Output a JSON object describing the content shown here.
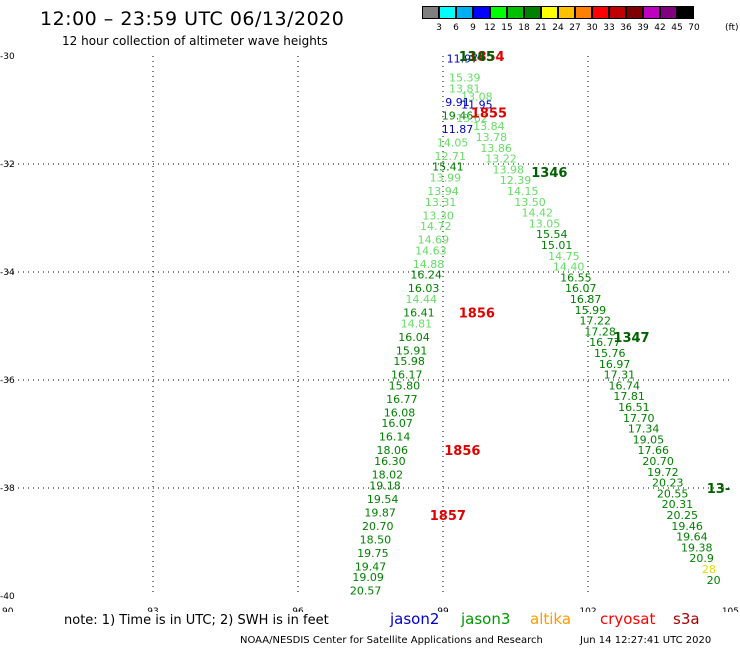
{
  "title": "12:00 – 23:59 UTC 06/13/2020",
  "subtitle": "12 hour collection of altimeter wave heights",
  "colorbar": {
    "units": "(ft)",
    "labels": [
      "3",
      "6",
      "9",
      "12",
      "15",
      "18",
      "21",
      "24",
      "27",
      "30",
      "33",
      "36",
      "39",
      "42",
      "45",
      "70"
    ],
    "colors": [
      "#7f7f7f",
      "#00ffff",
      "#00b0f0",
      "#0000ff",
      "#00ff00",
      "#00c000",
      "#008000",
      "#ffff00",
      "#ffc000",
      "#ff8000",
      "#ff0000",
      "#c00000",
      "#800000",
      "#c000c0",
      "#800080",
      "#000000"
    ]
  },
  "map": {
    "lon_range": [
      90,
      105
    ],
    "lat_range": [
      -40,
      -30
    ],
    "lon_ticks": [
      "90",
      "93",
      "96",
      "99",
      "102",
      "105"
    ],
    "lat_ticks": [
      "-30",
      "-32",
      "-34",
      "-36",
      "-38",
      "-40"
    ],
    "gridlines": true
  },
  "chart_data": {
    "type": "scatter",
    "tracks": [
      {
        "name": "jason3-1854",
        "points": [
          {
            "lon": 99.6,
            "lat": -30.0,
            "v": "13.9"
          },
          {
            "lon": 99.4,
            "lat": -30.05,
            "v": "11.97",
            "c": "#0000c0"
          },
          {
            "lon": 99.45,
            "lat": -30.4,
            "v": "15.39"
          },
          {
            "lon": 99.45,
            "lat": -30.6,
            "v": "13.81"
          },
          {
            "lon": 99.7,
            "lat": -30.75,
            "v": "13.08"
          },
          {
            "lon": 99.3,
            "lat": -30.85,
            "v": "9.91",
            "c": "#0000c0"
          },
          {
            "lon": 99.7,
            "lat": -30.9,
            "v": "11.95",
            "c": "#0000c0"
          },
          {
            "lon": 99.3,
            "lat": -31.1,
            "v": "19.46",
            "c": "#008000"
          },
          {
            "lon": 99.6,
            "lat": -31.15,
            "v": "13.62"
          },
          {
            "lon": 99.3,
            "lat": -31.35,
            "v": "11.87",
            "c": "#0000c0"
          },
          {
            "lon": 99.2,
            "lat": -31.6,
            "v": "14.05"
          },
          {
            "lon": 99.15,
            "lat": -31.85,
            "v": "12.71"
          },
          {
            "lon": 99.1,
            "lat": -32.05,
            "v": "15.41",
            "c": "#008000"
          },
          {
            "lon": 99.05,
            "lat": -32.25,
            "v": "13.99"
          },
          {
            "lon": 99.0,
            "lat": -32.5,
            "v": "13.94"
          },
          {
            "lon": 98.95,
            "lat": -32.7,
            "v": "13.31"
          },
          {
            "lon": 98.9,
            "lat": -32.95,
            "v": "13.30"
          },
          {
            "lon": 98.85,
            "lat": -33.15,
            "v": "14.72"
          },
          {
            "lon": 98.8,
            "lat": -33.4,
            "v": "14.69"
          },
          {
            "lon": 98.75,
            "lat": -33.6,
            "v": "14.63"
          },
          {
            "lon": 98.7,
            "lat": -33.85,
            "v": "14.88"
          },
          {
            "lon": 98.65,
            "lat": -34.05,
            "v": "16.24",
            "c": "#008000"
          },
          {
            "lon": 98.6,
            "lat": -34.3,
            "v": "16.03",
            "c": "#008000"
          },
          {
            "lon": 98.55,
            "lat": -34.5,
            "v": "14.44"
          },
          {
            "lon": 98.5,
            "lat": -34.75,
            "v": "16.41",
            "c": "#008000"
          },
          {
            "lon": 98.45,
            "lat": -34.95,
            "v": "14.81"
          },
          {
            "lon": 98.4,
            "lat": -35.2,
            "v": "16.04",
            "c": "#008000"
          },
          {
            "lon": 98.35,
            "lat": -35.45,
            "v": "15.91",
            "c": "#008000"
          },
          {
            "lon": 98.3,
            "lat": -35.65,
            "v": "15.98",
            "c": "#008000"
          },
          {
            "lon": 98.25,
            "lat": -35.9,
            "v": "16.17",
            "c": "#008000"
          },
          {
            "lon": 98.2,
            "lat": -36.1,
            "v": "15.80",
            "c": "#008000"
          },
          {
            "lon": 98.15,
            "lat": -36.35,
            "v": "16.77",
            "c": "#008000"
          },
          {
            "lon": 98.1,
            "lat": -36.6,
            "v": "16.08",
            "c": "#008000"
          },
          {
            "lon": 98.05,
            "lat": -36.8,
            "v": "16.07",
            "c": "#008000"
          },
          {
            "lon": 98.0,
            "lat": -37.05,
            "v": "16.14",
            "c": "#008000"
          },
          {
            "lon": 97.95,
            "lat": -37.3,
            "v": "18.06",
            "c": "#008000"
          },
          {
            "lon": 97.9,
            "lat": -37.5,
            "v": "16.30",
            "c": "#008000"
          },
          {
            "lon": 97.85,
            "lat": -37.75,
            "v": "18.02",
            "c": "#008000"
          },
          {
            "lon": 97.8,
            "lat": -37.95,
            "v": "19.18",
            "c": "#008000"
          },
          {
            "lon": 97.75,
            "lat": -38.2,
            "v": "19.54",
            "c": "#008000"
          },
          {
            "lon": 97.7,
            "lat": -38.45,
            "v": "19.87",
            "c": "#008000"
          },
          {
            "lon": 97.65,
            "lat": -38.7,
            "v": "20.70",
            "c": "#008000"
          },
          {
            "lon": 97.6,
            "lat": -38.95,
            "v": "18.50",
            "c": "#008000"
          },
          {
            "lon": 97.55,
            "lat": -39.2,
            "v": "19.75",
            "c": "#008000"
          },
          {
            "lon": 97.5,
            "lat": -39.45,
            "v": "19.47",
            "c": "#008000"
          },
          {
            "lon": 97.45,
            "lat": -39.65,
            "v": "19.09",
            "c": "#008000"
          },
          {
            "lon": 97.4,
            "lat": -39.9,
            "v": "20.57",
            "c": "#008000"
          }
        ]
      },
      {
        "name": "jason3-1346",
        "points": [
          {
            "lon": 99.95,
            "lat": -31.3,
            "v": "13.84"
          },
          {
            "lon": 100.0,
            "lat": -31.5,
            "v": "13.78"
          },
          {
            "lon": 100.1,
            "lat": -31.7,
            "v": "13.86"
          },
          {
            "lon": 100.2,
            "lat": -31.9,
            "v": "13.22"
          },
          {
            "lon": 100.35,
            "lat": -32.1,
            "v": "13.98"
          },
          {
            "lon": 100.5,
            "lat": -32.3,
            "v": "12.39"
          },
          {
            "lon": 100.65,
            "lat": -32.5,
            "v": "14.15"
          },
          {
            "lon": 100.8,
            "lat": -32.7,
            "v": "13.50"
          },
          {
            "lon": 100.95,
            "lat": -32.9,
            "v": "14.42"
          },
          {
            "lon": 101.1,
            "lat": -33.1,
            "v": "13.05"
          },
          {
            "lon": 101.25,
            "lat": -33.3,
            "v": "15.54",
            "c": "#008000"
          },
          {
            "lon": 101.35,
            "lat": -33.5,
            "v": "15.01",
            "c": "#008000"
          },
          {
            "lon": 101.5,
            "lat": -33.7,
            "v": "14.75"
          },
          {
            "lon": 101.6,
            "lat": -33.9,
            "v": "14.40"
          },
          {
            "lon": 101.75,
            "lat": -34.1,
            "v": "16.55",
            "c": "#008000"
          },
          {
            "lon": 101.85,
            "lat": -34.3,
            "v": "16.07",
            "c": "#008000"
          },
          {
            "lon": 101.95,
            "lat": -34.5,
            "v": "16.87",
            "c": "#008000"
          },
          {
            "lon": 102.05,
            "lat": -34.7,
            "v": "15.99",
            "c": "#008000"
          },
          {
            "lon": 102.15,
            "lat": -34.9,
            "v": "17.22",
            "c": "#008000"
          },
          {
            "lon": 102.25,
            "lat": -35.1,
            "v": "17.28",
            "c": "#008000"
          },
          {
            "lon": 102.35,
            "lat": -35.3,
            "v": "16.77",
            "c": "#008000"
          },
          {
            "lon": 102.45,
            "lat": -35.5,
            "v": "15.76",
            "c": "#008000"
          },
          {
            "lon": 102.55,
            "lat": -35.7,
            "v": "16.97",
            "c": "#008000"
          },
          {
            "lon": 102.65,
            "lat": -35.9,
            "v": "17.31",
            "c": "#008000"
          },
          {
            "lon": 102.75,
            "lat": -36.1,
            "v": "16.74",
            "c": "#008000"
          },
          {
            "lon": 102.85,
            "lat": -36.3,
            "v": "17.81",
            "c": "#008000"
          },
          {
            "lon": 102.95,
            "lat": -36.5,
            "v": "16.51",
            "c": "#008000"
          },
          {
            "lon": 103.05,
            "lat": -36.7,
            "v": "17.70",
            "c": "#008000"
          },
          {
            "lon": 103.15,
            "lat": -36.9,
            "v": "17.34",
            "c": "#008000"
          },
          {
            "lon": 103.25,
            "lat": -37.1,
            "v": "19.05",
            "c": "#008000"
          },
          {
            "lon": 103.35,
            "lat": -37.3,
            "v": "17.66",
            "c": "#008000"
          },
          {
            "lon": 103.45,
            "lat": -37.5,
            "v": "20.70",
            "c": "#008000"
          },
          {
            "lon": 103.55,
            "lat": -37.7,
            "v": "19.72",
            "c": "#008000"
          },
          {
            "lon": 103.65,
            "lat": -37.9,
            "v": "20.23",
            "c": "#008000"
          },
          {
            "lon": 103.75,
            "lat": -38.1,
            "v": "20.55",
            "c": "#008000"
          },
          {
            "lon": 103.85,
            "lat": -38.3,
            "v": "20.31",
            "c": "#008000"
          },
          {
            "lon": 103.95,
            "lat": -38.5,
            "v": "20.25",
            "c": "#008000"
          },
          {
            "lon": 104.05,
            "lat": -38.7,
            "v": "19.46",
            "c": "#008000"
          },
          {
            "lon": 104.15,
            "lat": -38.9,
            "v": "19.64",
            "c": "#008000"
          },
          {
            "lon": 104.25,
            "lat": -39.1,
            "v": "19.38",
            "c": "#008000"
          },
          {
            "lon": 104.35,
            "lat": -39.3,
            "v": "20.9",
            "c": "#008000"
          },
          {
            "lon": 104.5,
            "lat": -39.5,
            "v": "28",
            "c": "#e0e000"
          },
          {
            "lon": 104.6,
            "lat": -39.7,
            "v": "20",
            "c": "#008000"
          }
        ]
      }
    ],
    "time_labels": [
      {
        "lon": 99.9,
        "lat": -30.0,
        "v": "1854",
        "c": "#e00000"
      },
      {
        "lon": 99.7,
        "lat": -30.0,
        "v": "1345",
        "c": "#006000"
      },
      {
        "lon": 99.95,
        "lat": -31.05,
        "v": "1855",
        "c": "#e00000"
      },
      {
        "lon": 101.2,
        "lat": -32.15,
        "v": "1346",
        "c": "#006000"
      },
      {
        "lon": 99.7,
        "lat": -34.75,
        "v": "1856",
        "c": "#e00000"
      },
      {
        "lon": 102.9,
        "lat": -35.2,
        "v": "1347",
        "c": "#006000"
      },
      {
        "lon": 99.4,
        "lat": -37.3,
        "v": "1856",
        "c": "#e00000"
      },
      {
        "lon": 99.1,
        "lat": -38.5,
        "v": "1857",
        "c": "#e00000"
      },
      {
        "lon": 104.7,
        "lat": -38.0,
        "v": "13-",
        "c": "#006000"
      }
    ]
  },
  "legend": {
    "note": "note:  1) Time is in UTC;  2) SWH is in feet",
    "satellites": [
      {
        "name": "jason2",
        "color": "#0000cc"
      },
      {
        "name": "jason3",
        "color": "#009900"
      },
      {
        "name": "altika",
        "color": "#ff9900"
      },
      {
        "name": "cryosat",
        "color": "#ff0000"
      },
      {
        "name": "s3a",
        "color": "#aa0000"
      }
    ]
  },
  "footer": {
    "credit": "NOAA/NESDIS Center for Satellite Applications and Research",
    "timestamp": "Jun 14 12:27:41 UTC 2020"
  }
}
